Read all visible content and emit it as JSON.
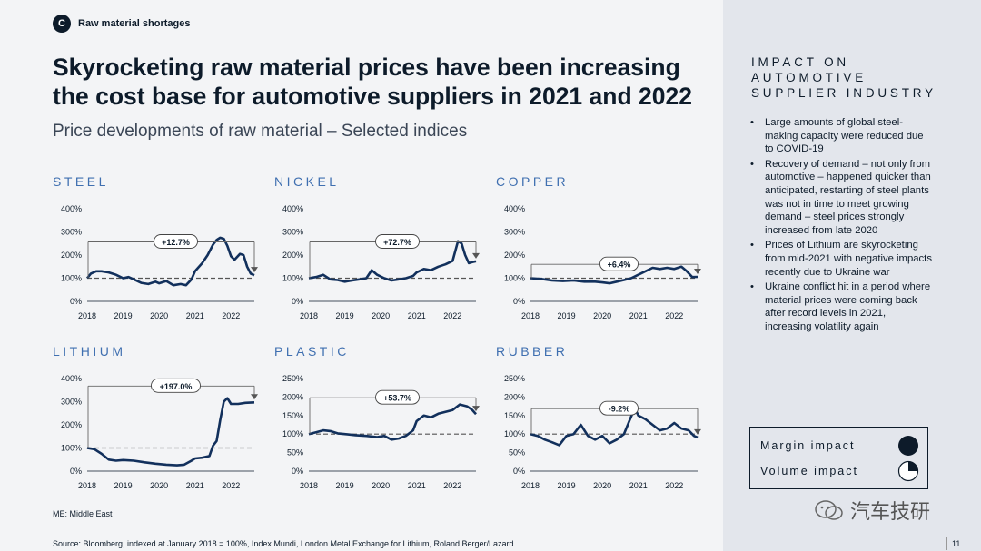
{
  "header": {
    "tag_letter": "C",
    "tag_label": "Raw material shortages",
    "title": "Skyrocketing raw material prices have been increasing the cost base for automotive suppliers in 2021 and 2022",
    "subtitle": "Price developments of raw material – Selected indices"
  },
  "colors": {
    "navy": "#0d1b2a",
    "accent": "#3f6fb0",
    "line": "#12305c"
  },
  "chart_data": [
    {
      "type": "line",
      "title": "STEEL",
      "ylim": [
        0,
        400
      ],
      "yticks": [
        "0%",
        "100%",
        "200%",
        "300%",
        "400%"
      ],
      "xticks": [
        "2018",
        "2019",
        "2020",
        "2021",
        "2022"
      ],
      "reference": 100,
      "change_label": "+12.7%",
      "series": [
        {
          "x": [
            2018.0,
            2018.1,
            2018.25,
            2018.4,
            2018.6,
            2018.8,
            2019.0,
            2019.15,
            2019.3,
            2019.5,
            2019.7,
            2019.9,
            2020.0,
            2020.2,
            2020.4,
            2020.6,
            2020.75,
            2020.9,
            2021.0,
            2021.2,
            2021.35,
            2021.5,
            2021.6,
            2021.7,
            2021.8,
            2021.9,
            2022.0,
            2022.1,
            2022.25,
            2022.35,
            2022.45,
            2022.55,
            2022.65
          ],
          "y": [
            100,
            120,
            130,
            130,
            125,
            115,
            100,
            105,
            95,
            80,
            75,
            85,
            78,
            88,
            70,
            75,
            70,
            95,
            130,
            165,
            200,
            245,
            265,
            275,
            270,
            240,
            195,
            180,
            205,
            200,
            150,
            120,
            113
          ]
        }
      ]
    },
    {
      "type": "line",
      "title": "NICKEL",
      "ylim": [
        0,
        400
      ],
      "yticks": [
        "0%",
        "100%",
        "200%",
        "300%",
        "400%"
      ],
      "xticks": [
        "2018",
        "2019",
        "2020",
        "2021",
        "2022"
      ],
      "reference": 100,
      "change_label": "+72.7%",
      "series": [
        {
          "x": [
            2018.0,
            2018.2,
            2018.4,
            2018.6,
            2018.8,
            2019.0,
            2019.2,
            2019.4,
            2019.6,
            2019.75,
            2019.9,
            2020.1,
            2020.3,
            2020.5,
            2020.7,
            2020.9,
            2021.0,
            2021.2,
            2021.4,
            2021.6,
            2021.8,
            2022.0,
            2022.15,
            2022.25,
            2022.35,
            2022.45,
            2022.55,
            2022.65
          ],
          "y": [
            100,
            105,
            115,
            95,
            92,
            85,
            90,
            95,
            100,
            135,
            115,
            100,
            90,
            95,
            100,
            110,
            125,
            140,
            135,
            150,
            160,
            175,
            260,
            250,
            200,
            165,
            170,
            173
          ]
        }
      ]
    },
    {
      "type": "line",
      "title": "COPPER",
      "ylim": [
        0,
        400
      ],
      "yticks": [
        "0%",
        "100%",
        "200%",
        "300%",
        "400%"
      ],
      "xticks": [
        "2018",
        "2019",
        "2020",
        "2021",
        "2022"
      ],
      "reference": 100,
      "change_label": "+6.4%",
      "series": [
        {
          "x": [
            2018.0,
            2018.3,
            2018.6,
            2018.9,
            2019.2,
            2019.5,
            2019.8,
            2020.0,
            2020.2,
            2020.4,
            2020.6,
            2020.8,
            2021.0,
            2021.2,
            2021.4,
            2021.6,
            2021.8,
            2022.0,
            2022.2,
            2022.35,
            2022.5,
            2022.65
          ],
          "y": [
            100,
            97,
            90,
            88,
            90,
            85,
            85,
            82,
            78,
            85,
            92,
            100,
            115,
            130,
            145,
            140,
            145,
            140,
            150,
            130,
            105,
            106
          ]
        }
      ]
    },
    {
      "type": "line",
      "title": "LITHIUM",
      "ylim": [
        0,
        400
      ],
      "yticks": [
        "0%",
        "100%",
        "200%",
        "300%",
        "400%"
      ],
      "xticks": [
        "2018",
        "2019",
        "2020",
        "2021",
        "2022"
      ],
      "reference": 100,
      "change_label": "+197.0%",
      "series": [
        {
          "x": [
            2018.0,
            2018.2,
            2018.4,
            2018.6,
            2018.8,
            2019.0,
            2019.3,
            2019.6,
            2019.9,
            2020.2,
            2020.5,
            2020.7,
            2020.9,
            2021.0,
            2021.2,
            2021.4,
            2021.5,
            2021.6,
            2021.7,
            2021.8,
            2021.9,
            2022.0,
            2022.2,
            2022.4,
            2022.65
          ],
          "y": [
            100,
            95,
            75,
            50,
            45,
            48,
            45,
            38,
            32,
            28,
            25,
            28,
            45,
            55,
            58,
            65,
            110,
            130,
            220,
            300,
            315,
            290,
            290,
            295,
            297
          ]
        }
      ]
    },
    {
      "type": "line",
      "title": "PLASTIC",
      "ylim": [
        0,
        250
      ],
      "yticks": [
        "0%",
        "50%",
        "100%",
        "150%",
        "200%",
        "250%"
      ],
      "xticks": [
        "2018",
        "2019",
        "2020",
        "2021",
        "2022"
      ],
      "reference": 100,
      "change_label": "+53.7%",
      "series": [
        {
          "x": [
            2018.0,
            2018.2,
            2018.4,
            2018.6,
            2018.8,
            2019.0,
            2019.3,
            2019.6,
            2019.9,
            2020.1,
            2020.3,
            2020.5,
            2020.7,
            2020.9,
            2021.0,
            2021.2,
            2021.4,
            2021.6,
            2021.8,
            2022.0,
            2022.2,
            2022.4,
            2022.55,
            2022.65
          ],
          "y": [
            100,
            105,
            110,
            108,
            102,
            100,
            97,
            95,
            92,
            95,
            85,
            88,
            95,
            110,
            135,
            150,
            145,
            155,
            160,
            165,
            180,
            175,
            165,
            154
          ]
        }
      ]
    },
    {
      "type": "line",
      "title": "RUBBER",
      "ylim": [
        0,
        250
      ],
      "yticks": [
        "0%",
        "50%",
        "100%",
        "150%",
        "200%",
        "250%"
      ],
      "xticks": [
        "2018",
        "2019",
        "2020",
        "2021",
        "2022"
      ],
      "reference": 100,
      "change_label": "-9.2%",
      "series": [
        {
          "x": [
            2018.0,
            2018.2,
            2018.4,
            2018.6,
            2018.8,
            2019.0,
            2019.2,
            2019.4,
            2019.6,
            2019.8,
            2020.0,
            2020.2,
            2020.4,
            2020.6,
            2020.75,
            2020.9,
            2021.0,
            2021.1,
            2021.2,
            2021.4,
            2021.6,
            2021.8,
            2022.0,
            2022.2,
            2022.4,
            2022.55,
            2022.65
          ],
          "y": [
            100,
            95,
            85,
            78,
            70,
            95,
            100,
            125,
            95,
            85,
            95,
            75,
            85,
            100,
            135,
            170,
            150,
            145,
            140,
            125,
            110,
            115,
            130,
            115,
            110,
            95,
            91
          ]
        }
      ]
    }
  ],
  "notes": {
    "abbreviation": "ME: Middle East",
    "source": "Source: Bloomberg, indexed at January 2018 = 100%, Index Mundi, London Metal Exchange for Lithium, Roland Berger/Lazard",
    "page": "11"
  },
  "sidebar": {
    "title_lines": [
      "IMPACT ON",
      "AUTOMOTIVE",
      "SUPPLIER INDUSTRY"
    ],
    "bullets": [
      "Large amounts of global steel-making capacity were reduced due to COVID-19",
      "Recovery of demand – not only from automotive – happened quicker than anticipated, restarting of steel plants was not in time to meet growing demand – steel prices strongly increased from late 2020",
      "Prices of Lithium are skyrocketing from mid-2021 with negative impacts recently due to Ukraine war",
      "Ukraine conflict hit in a period where material prices were coming back after record levels in 2021, increasing volatility again"
    ],
    "legend": [
      {
        "label": "Margin impact",
        "level": 1.0,
        "icon": "full-circle-icon"
      },
      {
        "label": "Volume impact",
        "level": 0.25,
        "icon": "quarter-circle-icon"
      }
    ]
  },
  "watermark": "汽车技研"
}
